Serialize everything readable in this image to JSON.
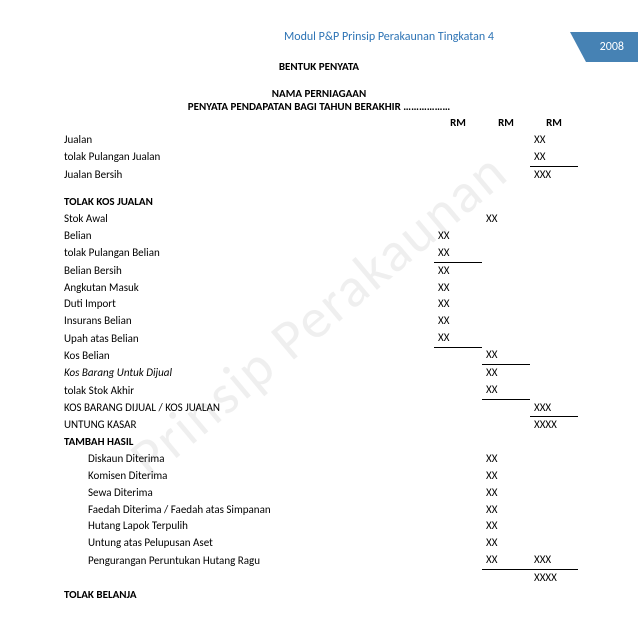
{
  "watermark": "Prinsip Perakaunan",
  "header": {
    "module_title": "Modul P&P Prinsip Perakaunan Tingkatan 4",
    "year": "2008"
  },
  "titles": {
    "section": "BENTUK PENYATA",
    "line1": "NAMA PERNIAGAAN",
    "line2": "PENYATA PENDAPATAN BAGI TAHUN BERAKHIR ………………"
  },
  "colhdr": {
    "c1": "RM",
    "c2": "RM",
    "c3": "RM"
  },
  "rows": {
    "jualan": {
      "label": "Jualan",
      "c3": "XX"
    },
    "tolak_pulangan_jualan": {
      "label": "tolak Pulangan Jualan",
      "c3": "XX"
    },
    "jualan_bersih": {
      "label": "Jualan Bersih",
      "c3": "XXX"
    },
    "tolak_kos_jualan_hdr": {
      "label": "TOLAK KOS JUALAN"
    },
    "stok_awal": {
      "label": "Stok Awal",
      "c2": "XX"
    },
    "belian": {
      "label": "Belian",
      "c1": "XX"
    },
    "tolak_pulangan_belian": {
      "label": "tolak Pulangan Belian",
      "c1": "XX"
    },
    "belian_bersih": {
      "label": "Belian Bersih",
      "c1": "XX"
    },
    "angkutan_masuk": {
      "label": "Angkutan Masuk",
      "c1": "XX"
    },
    "duti_import": {
      "label": "Duti Import",
      "c1": "XX"
    },
    "insurans_belian": {
      "label": "Insurans Belian",
      "c1": "XX"
    },
    "upah_atas_belian": {
      "label": "Upah atas Belian",
      "c1": "XX"
    },
    "kos_belian": {
      "label": "Kos Belian",
      "c2": "XX"
    },
    "kos_barang_untuk_dijual": {
      "label": "Kos Barang Untuk Dijual",
      "c2": "XX"
    },
    "tolak_stok_akhir": {
      "label": "tolak Stok Akhir",
      "c2": "XX"
    },
    "kos_barang_dijual": {
      "label": "KOS BARANG DIJUAL / KOS JUALAN",
      "c3": "XXX"
    },
    "untung_kasar": {
      "label": "UNTUNG KASAR",
      "c3": "XXXX"
    },
    "tambah_hasil_hdr": {
      "label": "TAMBAH HASIL"
    },
    "diskaun_diterima": {
      "label": "Diskaun Diterima",
      "c2": "XX"
    },
    "komisen_diterima": {
      "label": "Komisen Diterima",
      "c2": "XX"
    },
    "sewa_diterima": {
      "label": "Sewa Diterima",
      "c2": "XX"
    },
    "faedah_diterima": {
      "label": "Faedah Diterima / Faedah atas Simpanan",
      "c2": "XX"
    },
    "hutang_lapok_terpulih": {
      "label": "Hutang Lapok Terpulih",
      "c2": "XX"
    },
    "untung_pelupusan": {
      "label": "Untung atas Pelupusan Aset",
      "c2": "XX"
    },
    "pengurangan_peruntukan": {
      "label": "Pengurangan Peruntukan Hutang Ragu",
      "c2": "XX",
      "c3": "XXX"
    },
    "subtotal_hasil": {
      "c3": "XXXX"
    },
    "tolak_belanja_hdr": {
      "label": "TOLAK BELANJA"
    }
  },
  "colors": {
    "header_text": "#2e74b5",
    "year_tab_bg": "#4682b4",
    "year_tab_text": "#ffffff",
    "watermark": "rgba(128,128,128,0.13)",
    "line": "#000000"
  }
}
